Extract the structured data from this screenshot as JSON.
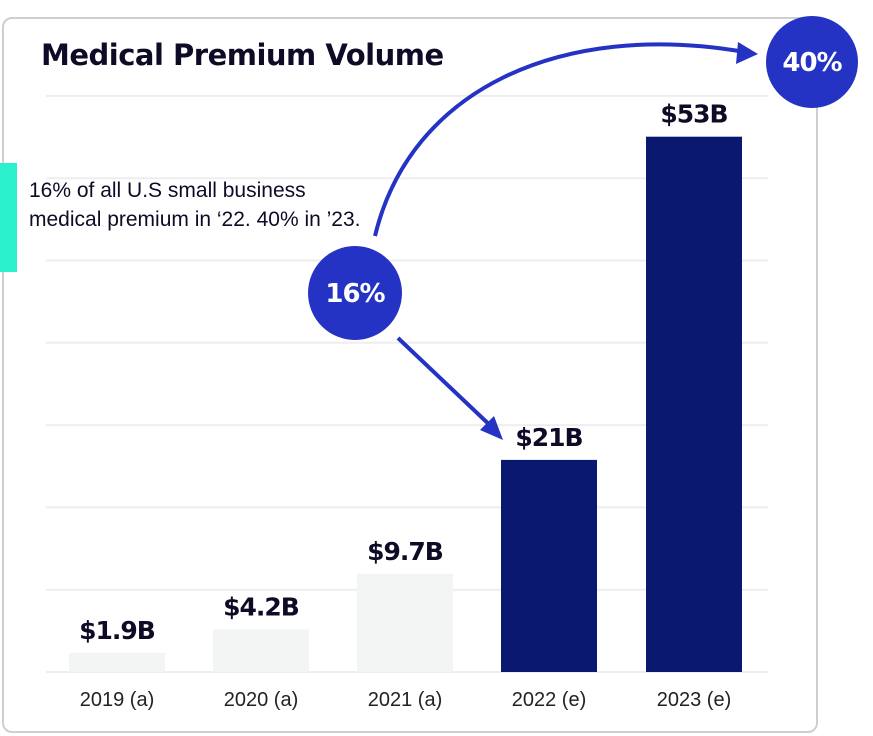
{
  "chart_data": {
    "type": "bar",
    "title": "Medical Premium Volume",
    "categories": [
      "2019 (a)",
      "2020 (a)",
      "2021 (a)",
      "2022 (e)",
      "2023 (e)"
    ],
    "values": [
      1.9,
      4.2,
      9.7,
      21,
      53
    ],
    "data_labels": [
      "$1.9B",
      "$4.2B",
      "$9.7B",
      "$21B",
      "$53B"
    ],
    "unit": "$B",
    "highlighted": [
      false,
      false,
      false,
      true,
      true
    ],
    "grid": true,
    "colors": {
      "actual": "#f3f4f4",
      "estimate": "#0a1870",
      "accent": "#2433c4",
      "note_bar": "#2af0cc"
    },
    "annotation": "16% of all U.S small business medical premium in ‘22. 40% in ’23.",
    "badges": [
      "16%",
      "40%"
    ]
  }
}
